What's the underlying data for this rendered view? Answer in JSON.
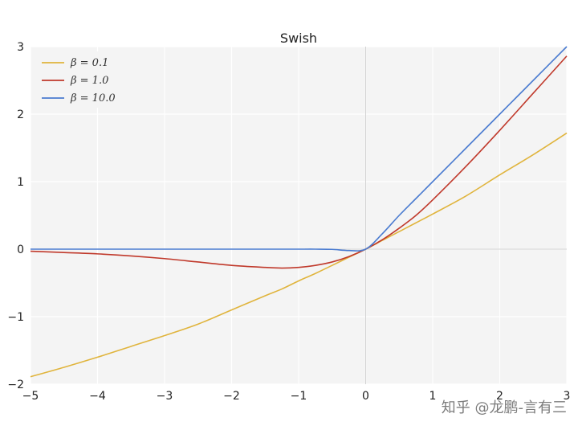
{
  "chart_data": {
    "type": "line",
    "title": "Swish",
    "xlabel": "",
    "ylabel": "",
    "xlim": [
      -5,
      3
    ],
    "ylim": [
      -2,
      3
    ],
    "xticks": [
      "−5",
      "−4",
      "−3",
      "−2",
      "−1",
      "0",
      "1",
      "2",
      "3"
    ],
    "yticks": [
      "−2",
      "−1",
      "0",
      "1",
      "2",
      "3"
    ],
    "grid": true,
    "legend_position": "top-left",
    "x": [
      -5,
      -4.5,
      -4,
      -3.5,
      -3,
      -2.5,
      -2,
      -1.5,
      -1.25,
      -1,
      -0.75,
      -0.5,
      -0.25,
      0,
      0.25,
      0.5,
      0.75,
      1,
      1.5,
      2,
      2.5,
      3
    ],
    "series": [
      {
        "name": "β = 0.1",
        "color": "#e0b43c",
        "values": [
          -1.89,
          -1.75,
          -1.6,
          -1.44,
          -1.28,
          -1.11,
          -0.9,
          -0.69,
          -0.59,
          -0.47,
          -0.36,
          -0.24,
          -0.12,
          0.0,
          0.13,
          0.26,
          0.39,
          0.52,
          0.79,
          1.1,
          1.4,
          1.72
        ]
      },
      {
        "name": "β = 1.0",
        "color": "#c0392b",
        "values": [
          -0.03,
          -0.05,
          -0.07,
          -0.1,
          -0.14,
          -0.19,
          -0.24,
          -0.27,
          -0.28,
          -0.27,
          -0.24,
          -0.19,
          -0.11,
          0.0,
          0.14,
          0.31,
          0.5,
          0.73,
          1.23,
          1.76,
          2.31,
          2.86
        ]
      },
      {
        "name": "β = 10.0",
        "color": "#4a7bd0",
        "values": [
          0.0,
          0.0,
          0.0,
          0.0,
          0.0,
          0.0,
          0.0,
          0.0,
          0.0,
          0.0,
          0.0,
          -0.003,
          -0.02,
          0.0,
          0.23,
          0.5,
          0.75,
          1.0,
          1.5,
          2.0,
          2.5,
          3.0
        ]
      }
    ]
  },
  "watermark": "知乎 @龙鹏-言有三"
}
